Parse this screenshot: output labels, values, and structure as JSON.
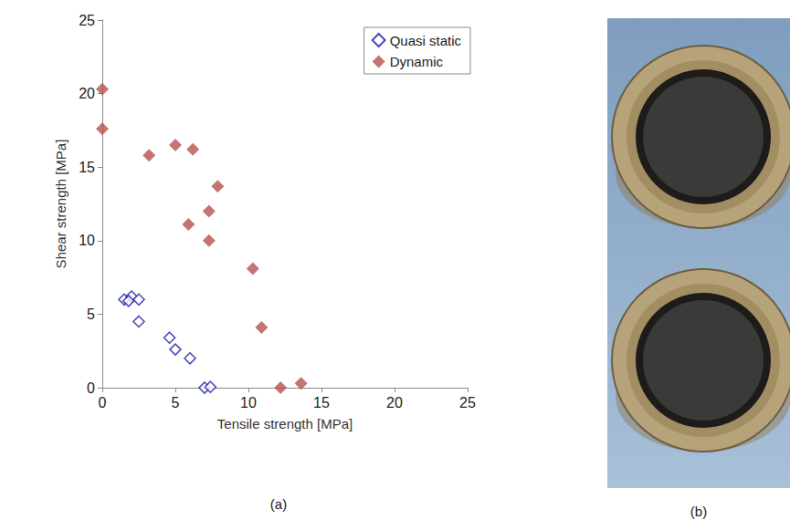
{
  "chart_data": {
    "type": "scatter",
    "caption": "(a)",
    "x_label": "Tensile strength [MPa]",
    "y_label": "Shear strength [MPa]",
    "xlim": [
      0,
      25
    ],
    "xticks": [
      0,
      5,
      10,
      15,
      20,
      25
    ],
    "ylim": [
      0,
      25
    ],
    "yticks": [
      0,
      5,
      10,
      15,
      20,
      25
    ],
    "grid": false,
    "legend": "upper right",
    "series": [
      {
        "name": "Quasi static",
        "color": "#1f1fa8",
        "marker": "open diamond",
        "x": [
          1.5,
          2.0,
          2.5,
          1.8,
          2.5,
          4.6,
          5.0,
          6.0,
          7.0,
          7.4
        ],
        "values": [
          6.0,
          6.2,
          6.0,
          5.9,
          4.5,
          3.4,
          2.6,
          2.0,
          0.0,
          0.05
        ]
      },
      {
        "name": "Dynamic",
        "color": "#b5524d",
        "marker": "diamond",
        "x": [
          0,
          0,
          3.2,
          5.0,
          6.2,
          7.9,
          5.9,
          7.3,
          7.3,
          10.3,
          10.9,
          12.2,
          13.6
        ],
        "values": [
          20.3,
          17.6,
          15.8,
          16.5,
          16.2,
          13.7,
          11.1,
          12.0,
          10.0,
          8.1,
          4.1,
          0.0,
          0.3
        ]
      }
    ]
  },
  "photo": {
    "caption": "(b)"
  }
}
